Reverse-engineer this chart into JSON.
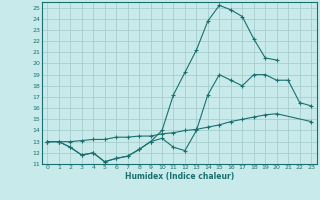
{
  "xlabel": "Humidex (Indice chaleur)",
  "bg_color": "#c8eaea",
  "grid_color": "#a0c8c8",
  "line_color": "#1a7070",
  "xlim": [
    -0.5,
    23.5
  ],
  "ylim": [
    11,
    25.5
  ],
  "xticks": [
    0,
    1,
    2,
    3,
    4,
    5,
    6,
    7,
    8,
    9,
    10,
    11,
    12,
    13,
    14,
    15,
    16,
    17,
    18,
    19,
    20,
    21,
    22,
    23
  ],
  "yticks": [
    11,
    12,
    13,
    14,
    15,
    16,
    17,
    18,
    19,
    20,
    21,
    22,
    23,
    24,
    25
  ],
  "line1_x": [
    0,
    1,
    2,
    3,
    4,
    5,
    6,
    7,
    8,
    9,
    10,
    11,
    12,
    13,
    14,
    15,
    16,
    17,
    18,
    19,
    20,
    21,
    22,
    23
  ],
  "line1_y": [
    13.0,
    13.0,
    12.5,
    11.8,
    12.0,
    11.2,
    11.5,
    11.7,
    12.3,
    13.0,
    13.3,
    12.5,
    12.2,
    14.0,
    17.2,
    19.0,
    18.5,
    18.0,
    19.0,
    19.0,
    18.5,
    18.5,
    16.5,
    16.2
  ],
  "line2_x": [
    0,
    1,
    2,
    3,
    4,
    5,
    6,
    7,
    8,
    9,
    10,
    11,
    12,
    13,
    14,
    15,
    16,
    17,
    18,
    19,
    20
  ],
  "line2_y": [
    13.0,
    13.0,
    12.5,
    11.8,
    12.0,
    11.2,
    11.5,
    11.7,
    12.3,
    13.0,
    14.0,
    17.2,
    19.2,
    21.2,
    23.8,
    25.2,
    24.8,
    24.2,
    22.2,
    20.5,
    20.3
  ],
  "line3_x": [
    0,
    1,
    2,
    3,
    4,
    5,
    6,
    7,
    8,
    9,
    10,
    11,
    12,
    13,
    14,
    15,
    16,
    17,
    18,
    19,
    20,
    23
  ],
  "line3_y": [
    13.0,
    13.0,
    13.0,
    13.1,
    13.2,
    13.2,
    13.4,
    13.4,
    13.5,
    13.5,
    13.7,
    13.8,
    14.0,
    14.1,
    14.3,
    14.5,
    14.8,
    15.0,
    15.2,
    15.4,
    15.5,
    14.8
  ]
}
